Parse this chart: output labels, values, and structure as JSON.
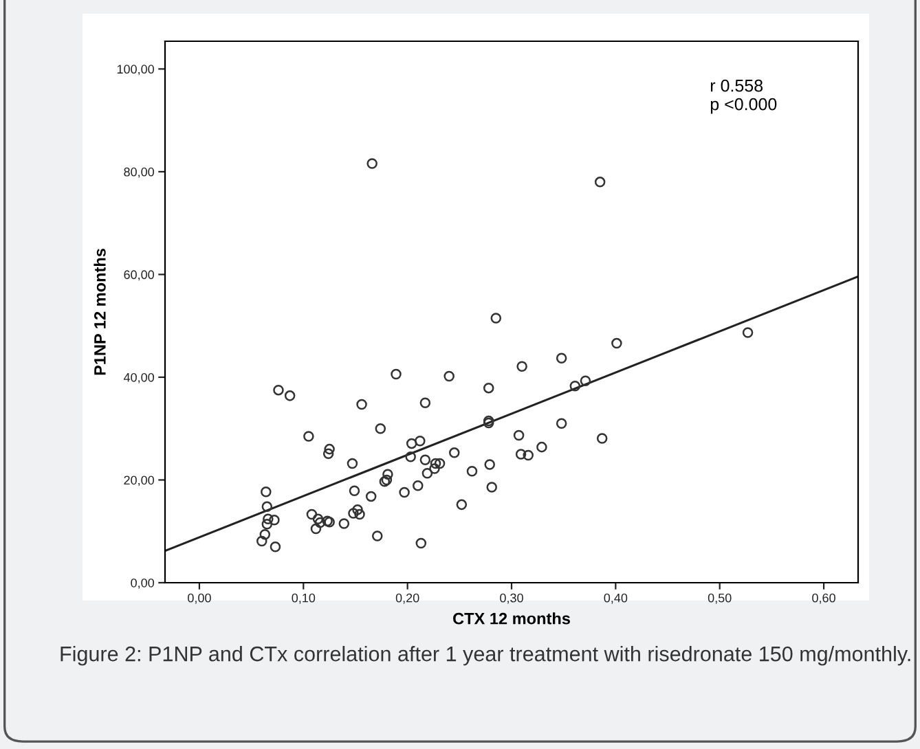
{
  "chart_data": {
    "type": "scatter",
    "xlabel": "CTX 12 months",
    "ylabel": "P1NP 12 months",
    "xlim": [
      -0.033,
      0.633
    ],
    "ylim": [
      0,
      105.4
    ],
    "xticks": [
      {
        "value": 0,
        "label": "0,00"
      },
      {
        "value": 0.1,
        "label": "0,10"
      },
      {
        "value": 0.2,
        "label": "0,20"
      },
      {
        "value": 0.3,
        "label": "0,30"
      },
      {
        "value": 0.4,
        "label": "0,40"
      },
      {
        "value": 0.5,
        "label": "0,50"
      },
      {
        "value": 0.6,
        "label": "0,60"
      }
    ],
    "yticks": [
      {
        "value": 0,
        "label": "0,00"
      },
      {
        "value": 20,
        "label": "20,00"
      },
      {
        "value": 40,
        "label": "40,00"
      },
      {
        "value": 60,
        "label": "60,00"
      },
      {
        "value": 80,
        "label": "80,00"
      },
      {
        "value": 100,
        "label": "100,00"
      }
    ],
    "grid": false,
    "legend": false,
    "marker": "circle",
    "series": [
      {
        "color": "#333333",
        "x": [
          0.06,
          0.063,
          0.065,
          0.066,
          0.072,
          0.064,
          0.065,
          0.073,
          0.076,
          0.087,
          0.105,
          0.108,
          0.112,
          0.114,
          0.116,
          0.123,
          0.125,
          0.125,
          0.124,
          0.139,
          0.147,
          0.149,
          0.148,
          0.152,
          0.154,
          0.156,
          0.165,
          0.171,
          0.174,
          0.178,
          0.18,
          0.181,
          0.189,
          0.197,
          0.203,
          0.204,
          0.21,
          0.212,
          0.213,
          0.217,
          0.217,
          0.219,
          0.226,
          0.227,
          0.231,
          0.24,
          0.245,
          0.252,
          0.262,
          0.278,
          0.279,
          0.278,
          0.278,
          0.281,
          0.285,
          0.307,
          0.31,
          0.309,
          0.316,
          0.329,
          0.348,
          0.348,
          0.361,
          0.371,
          0.387,
          0.401,
          0.527,
          0.166,
          0.385
        ],
        "values": [
          8.1,
          9.4,
          11.4,
          12.4,
          12.2,
          17.7,
          14.8,
          7.0,
          37.5,
          36.4,
          28.5,
          13.3,
          10.5,
          12.4,
          11.7,
          12.0,
          11.8,
          26.0,
          25.1,
          11.5,
          23.2,
          17.9,
          13.5,
          14.2,
          13.3,
          34.7,
          16.8,
          9.1,
          30.0,
          19.7,
          20.0,
          21.1,
          40.6,
          17.6,
          24.5,
          27.1,
          18.9,
          27.6,
          7.7,
          35.0,
          23.9,
          21.3,
          22.2,
          23.2,
          23.2,
          40.2,
          25.3,
          15.2,
          21.7,
          37.9,
          23.0,
          31.1,
          31.5,
          18.6,
          51.5,
          28.7,
          42.1,
          25.0,
          24.8,
          26.4,
          43.7,
          31.0,
          38.3,
          39.3,
          28.1,
          46.6,
          48.7,
          81.6,
          78.0
        ]
      },
      {
        "type": "line",
        "color": "#222222",
        "marker": "none",
        "line_style": "solid",
        "x": [
          -0.033,
          0.633
        ],
        "values": [
          6.2,
          59.6
        ]
      }
    ],
    "annotations": [
      "r 0.558\np <0.000",
      "Figure 2: P1NP and CTx correlation after 1 year treatment with risedronate 150 mg/monthly."
    ]
  }
}
